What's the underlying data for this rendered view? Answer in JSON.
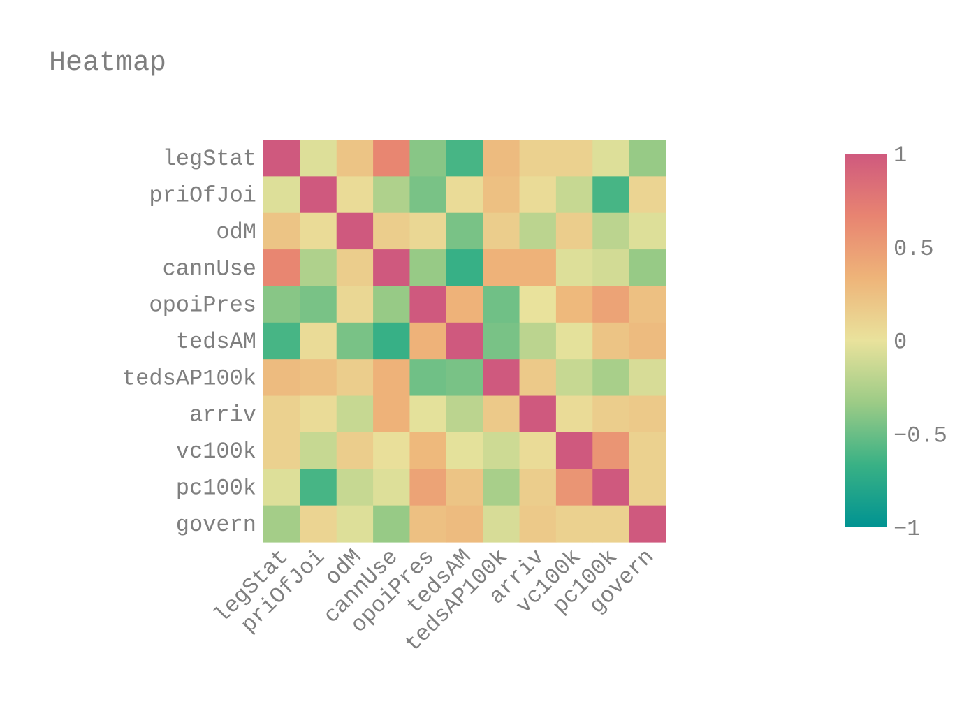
{
  "chart_data": {
    "type": "heatmap",
    "title": "Heatmap",
    "xlabel": "",
    "ylabel": "",
    "categories": [
      "legStat",
      "priOfJoi",
      "odM",
      "cannUse",
      "opoiPres",
      "tedsAM",
      "tedsAP100k",
      "arriv",
      "vc100k",
      "pc100k",
      "govern"
    ],
    "z": [
      [
        1.0,
        -0.05,
        0.22,
        0.65,
        -0.4,
        -0.62,
        0.28,
        0.12,
        0.12,
        -0.05,
        -0.35
      ],
      [
        -0.05,
        1.0,
        0.05,
        -0.25,
        -0.45,
        0.05,
        0.25,
        0.05,
        -0.15,
        -0.62,
        0.1
      ],
      [
        0.22,
        0.05,
        1.0,
        0.15,
        0.08,
        -0.45,
        0.15,
        -0.2,
        0.15,
        -0.2,
        -0.05
      ],
      [
        0.65,
        -0.25,
        0.15,
        1.0,
        -0.35,
        -0.68,
        0.35,
        0.35,
        -0.05,
        -0.1,
        -0.35
      ],
      [
        -0.4,
        -0.45,
        0.08,
        -0.35,
        1.0,
        0.35,
        -0.48,
        0.0,
        0.3,
        0.45,
        0.25
      ],
      [
        -0.62,
        0.05,
        -0.45,
        -0.68,
        0.35,
        1.0,
        -0.45,
        -0.2,
        -0.02,
        0.22,
        0.28
      ],
      [
        0.28,
        0.25,
        0.15,
        0.35,
        -0.48,
        -0.45,
        1.0,
        0.18,
        -0.15,
        -0.28,
        -0.08
      ],
      [
        0.12,
        0.05,
        -0.15,
        0.35,
        -0.02,
        -0.2,
        0.18,
        1.0,
        0.05,
        0.15,
        0.18
      ],
      [
        0.12,
        -0.15,
        0.15,
        0.02,
        0.3,
        -0.02,
        -0.12,
        0.05,
        1.0,
        0.55,
        0.12
      ],
      [
        -0.05,
        -0.62,
        -0.15,
        -0.05,
        0.45,
        0.22,
        -0.28,
        0.15,
        0.55,
        1.0,
        0.12
      ],
      [
        -0.3,
        0.1,
        -0.05,
        -0.35,
        0.25,
        0.28,
        -0.08,
        0.18,
        0.12,
        0.12,
        1.0
      ]
    ],
    "zlim": [
      -1,
      1
    ],
    "colorscale": [
      "#009392",
      "#39b185",
      "#9ccb86",
      "#e9e29c",
      "#eeb479",
      "#e88471",
      "#cf597e"
    ],
    "colorbar": {
      "tickvals": [
        1,
        0.5,
        0,
        -0.5,
        -1
      ],
      "ticktext": [
        "1",
        "0.5",
        "0",
        "−0.5",
        "−1"
      ]
    },
    "grid": false,
    "legend_position": "right"
  }
}
